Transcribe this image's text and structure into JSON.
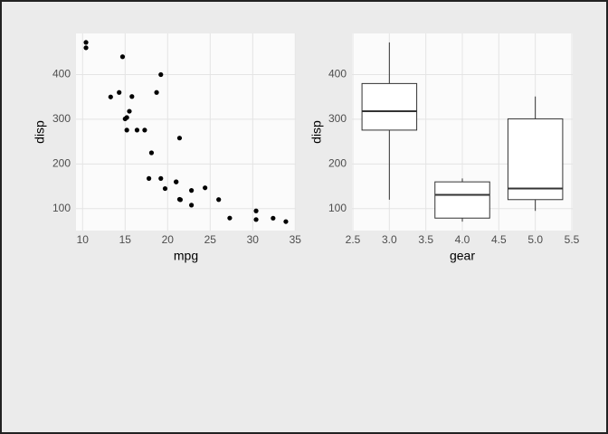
{
  "chart_data": [
    {
      "type": "scatter",
      "x_label": "mpg",
      "y_label": "disp",
      "color": "#000000",
      "x": [
        21,
        21,
        22.8,
        21.4,
        18.7,
        18.1,
        14.3,
        24.4,
        22.8,
        19.2,
        17.8,
        16.4,
        17.3,
        15.2,
        10.4,
        10.4,
        14.7,
        32.4,
        30.4,
        33.9,
        21.5,
        15.5,
        15.2,
        13.3,
        19.2,
        27.3,
        26,
        30.4,
        15.8,
        19.7,
        15,
        21.4
      ],
      "values": [
        160,
        160,
        108,
        258,
        360,
        225,
        360,
        146.7,
        140.8,
        167.6,
        167.6,
        275.8,
        275.8,
        275.8,
        472,
        460,
        440,
        78.7,
        75.7,
        71.1,
        120.1,
        318,
        304,
        350,
        400,
        79,
        120.3,
        95.1,
        351,
        145,
        301,
        121
      ],
      "xlim": [
        9.225,
        35.075
      ],
      "xticks": [
        10,
        15,
        20,
        25,
        30,
        35
      ],
      "ylim": [
        51.055,
        492.045
      ],
      "yticks": [
        100,
        200,
        300,
        400
      ],
      "grid": true
    },
    {
      "type": "box",
      "x_label": "gear",
      "y_label": "disp",
      "color": "#333333",
      "x": [
        3,
        4,
        5
      ],
      "min": [
        120.1,
        71.1,
        95.1
      ],
      "q1": [
        275.8,
        78.925,
        120.3
      ],
      "median": [
        318,
        130.9,
        145
      ],
      "q3": [
        380,
        160,
        301
      ],
      "max": [
        472,
        167.6,
        351
      ],
      "xlim": [
        2.4875,
        5.5125
      ],
      "xticks": [
        2.5,
        {
          "value": 3,
          "label": "3.0"
        },
        3.5,
        {
          "value": 4,
          "label": "4.0"
        },
        4.5,
        {
          "value": 5,
          "label": "5.0"
        },
        5.5
      ],
      "ylim": [
        51.055,
        492.045
      ],
      "yticks": [
        100,
        200,
        300,
        400
      ],
      "grid": true
    }
  ]
}
